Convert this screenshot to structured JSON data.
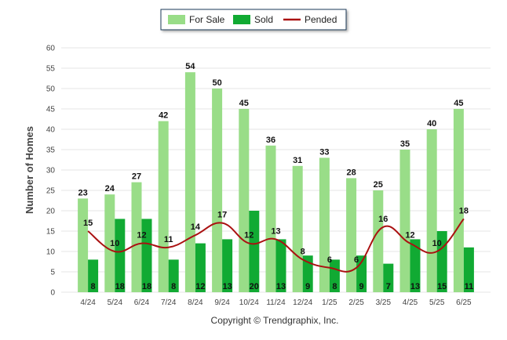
{
  "chart_data": {
    "type": "bar",
    "categories": [
      "4/24",
      "5/24",
      "6/24",
      "7/24",
      "8/24",
      "9/24",
      "10/24",
      "11/24",
      "12/24",
      "1/25",
      "2/25",
      "3/25",
      "4/25",
      "5/25",
      "6/25"
    ],
    "series": [
      {
        "name": "For Sale",
        "type": "bar",
        "color": "#99dd88",
        "values": [
          23,
          24,
          27,
          42,
          54,
          50,
          45,
          36,
          31,
          33,
          28,
          25,
          35,
          40,
          45
        ]
      },
      {
        "name": "Sold",
        "type": "bar",
        "color": "#11aa33",
        "values": [
          8,
          18,
          18,
          8,
          12,
          13,
          20,
          13,
          9,
          8,
          9,
          7,
          13,
          15,
          11
        ]
      },
      {
        "name": "Pended",
        "type": "line",
        "color": "#aa1111",
        "values": [
          15,
          10,
          12,
          11,
          14,
          17,
          12,
          13,
          8,
          6,
          6,
          16,
          12,
          10,
          18
        ]
      }
    ],
    "ylabel": "Number of Homes",
    "xlabel": "",
    "ylim": [
      0,
      60
    ],
    "yticks": [
      0,
      5,
      10,
      15,
      20,
      25,
      30,
      35,
      40,
      45,
      50,
      55,
      60
    ],
    "grid": true,
    "legend_position": "top-center"
  },
  "footer": {
    "copyright": "Copyright © Trendgraphix, Inc."
  }
}
